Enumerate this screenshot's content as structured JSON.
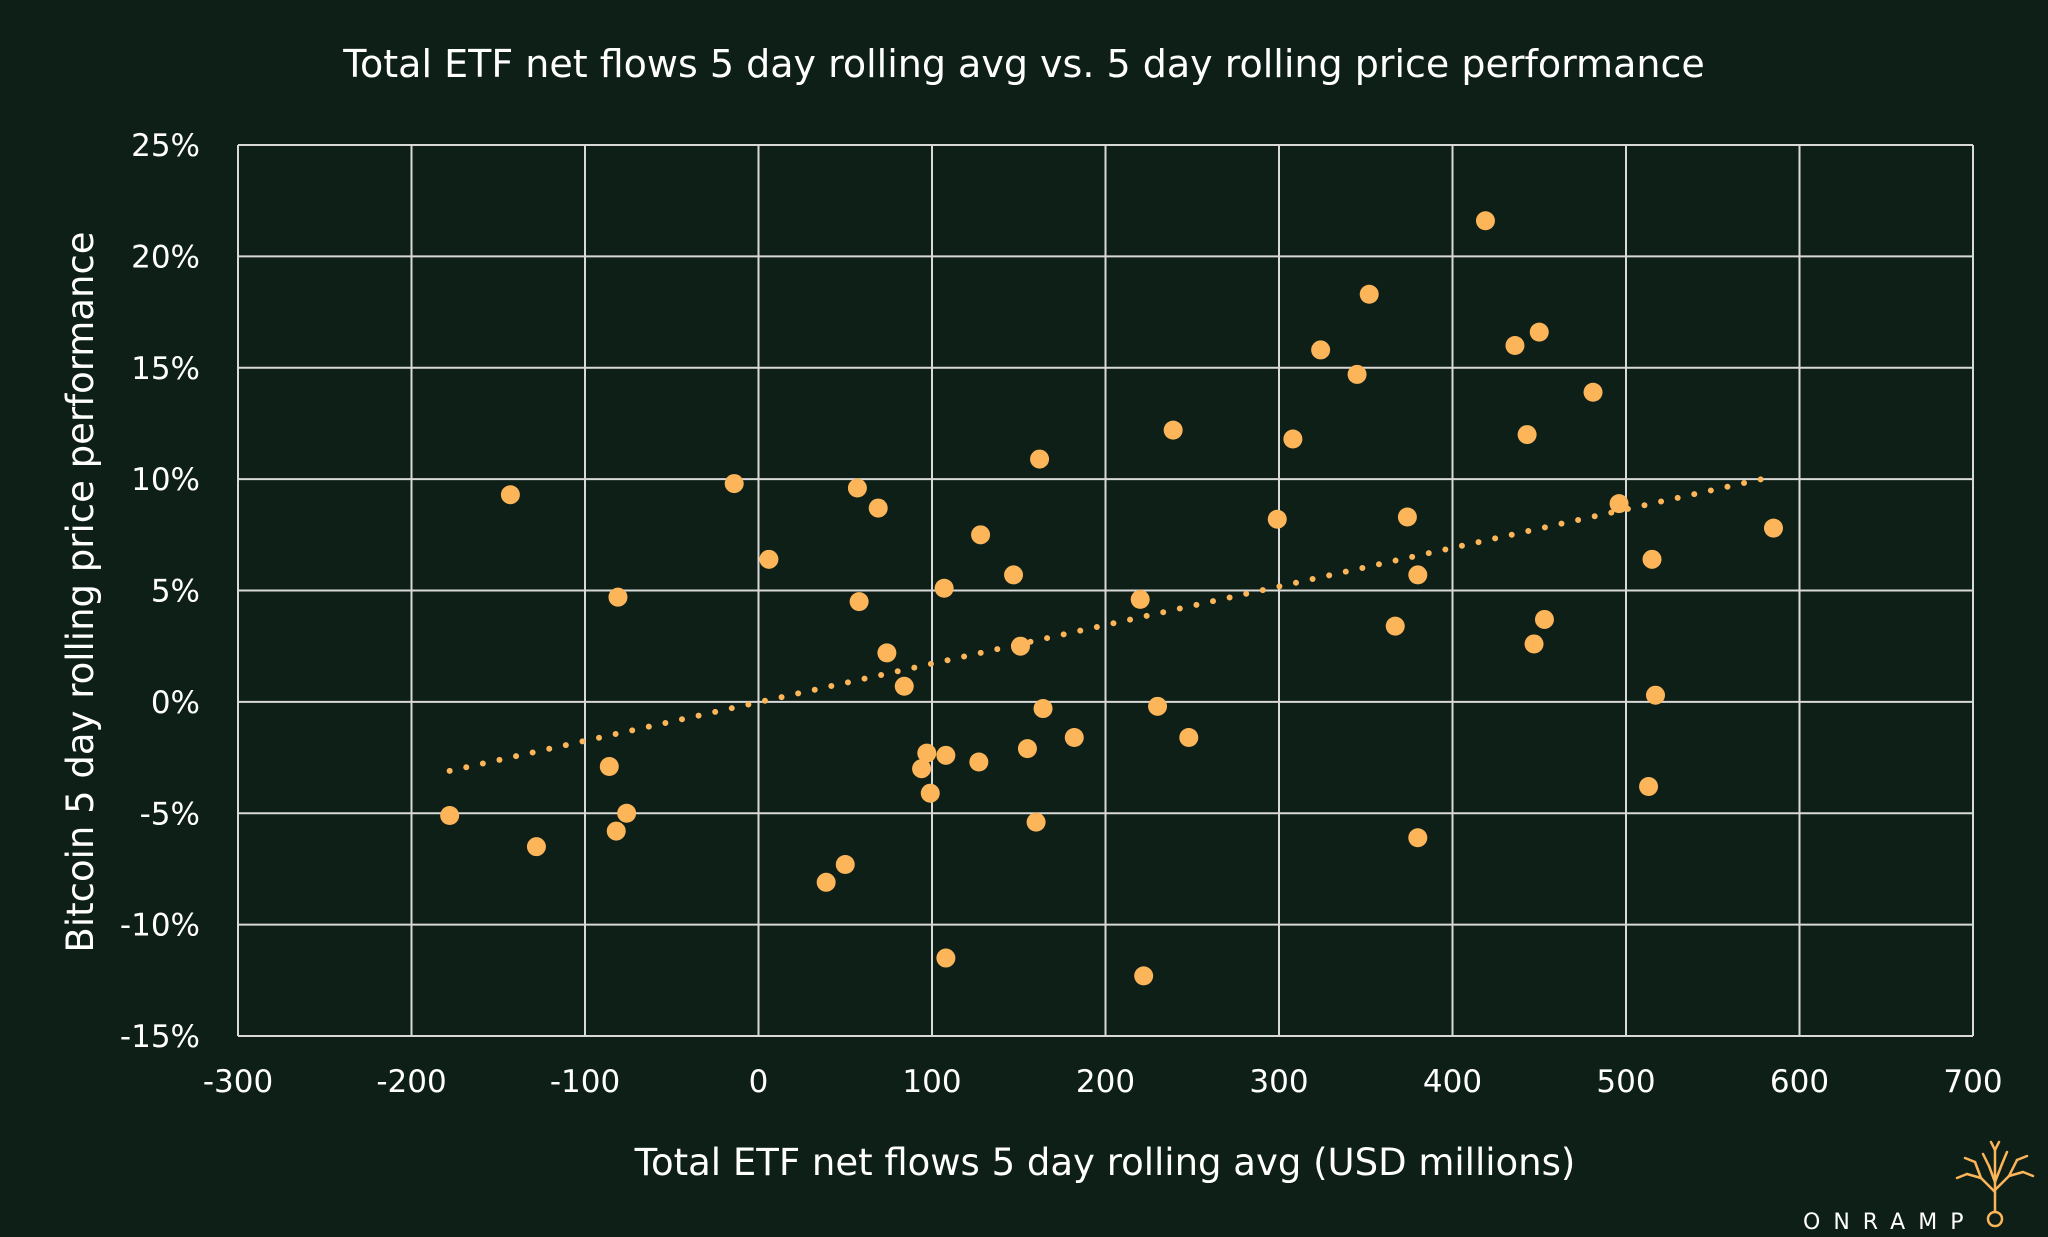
{
  "colors": {
    "background": "#0e1f17",
    "grid": "#d9d9d9",
    "point": "#fdb55a",
    "trendline": "#fdb55a",
    "text": "#ffffff"
  },
  "brand": {
    "logo_text": "ONRAMP",
    "logo_icon": "tree-icon"
  },
  "chart_data": {
    "type": "scatter",
    "title": "Total ETF net flows 5 day rolling avg vs. 5 day rolling price performance",
    "xlabel": "Total ETF net flows 5 day rolling avg (USD millions)",
    "ylabel": "Bitcoin 5 day rolling price performance",
    "xlim": [
      -300,
      700
    ],
    "ylim": [
      -15,
      25
    ],
    "x_ticks": [
      -300,
      -200,
      -100,
      0,
      100,
      200,
      300,
      400,
      500,
      600,
      700
    ],
    "x_tick_labels": [
      "-300",
      "-200",
      "-100",
      "0",
      "100",
      "200",
      "300",
      "400",
      "500",
      "600",
      "700"
    ],
    "y_ticks": [
      -15,
      -10,
      -5,
      0,
      5,
      10,
      15,
      20,
      25
    ],
    "y_tick_labels": [
      "-15%",
      "-10%",
      "-5%",
      "0%",
      "5%",
      "10%",
      "15%",
      "20%",
      "25%"
    ],
    "grid": true,
    "legend": "none",
    "trendline": {
      "type": "linear",
      "dotted": true,
      "x_range": [
        -178,
        584
      ],
      "y_at_start": -3.1,
      "y_at_end": 10.1
    },
    "points": [
      {
        "x": -178,
        "y": -5.1
      },
      {
        "x": -143,
        "y": 9.3
      },
      {
        "x": -128,
        "y": -6.5
      },
      {
        "x": -86,
        "y": -2.9
      },
      {
        "x": -82,
        "y": -5.8
      },
      {
        "x": -81,
        "y": 4.7
      },
      {
        "x": -76,
        "y": -5.0
      },
      {
        "x": -14,
        "y": 9.8
      },
      {
        "x": 6,
        "y": 6.4
      },
      {
        "x": 39,
        "y": -8.1
      },
      {
        "x": 50,
        "y": -7.3
      },
      {
        "x": 57,
        "y": 9.6
      },
      {
        "x": 58,
        "y": 4.5
      },
      {
        "x": 69,
        "y": 8.7
      },
      {
        "x": 74,
        "y": 2.2
      },
      {
        "x": 84,
        "y": 0.7
      },
      {
        "x": 94,
        "y": -3.0
      },
      {
        "x": 97,
        "y": -2.3
      },
      {
        "x": 99,
        "y": -4.1
      },
      {
        "x": 107,
        "y": 5.1
      },
      {
        "x": 108,
        "y": -2.4
      },
      {
        "x": 108,
        "y": -11.5
      },
      {
        "x": 127,
        "y": -2.7
      },
      {
        "x": 128,
        "y": 7.5
      },
      {
        "x": 147,
        "y": 5.7
      },
      {
        "x": 151,
        "y": 2.5
      },
      {
        "x": 155,
        "y": -2.1
      },
      {
        "x": 160,
        "y": -5.4
      },
      {
        "x": 162,
        "y": 10.9
      },
      {
        "x": 164,
        "y": -0.3
      },
      {
        "x": 182,
        "y": -1.6
      },
      {
        "x": 220,
        "y": 4.6
      },
      {
        "x": 222,
        "y": -12.3
      },
      {
        "x": 230,
        "y": -0.2
      },
      {
        "x": 239,
        "y": 12.2
      },
      {
        "x": 248,
        "y": -1.6
      },
      {
        "x": 299,
        "y": 8.2
      },
      {
        "x": 308,
        "y": 11.8
      },
      {
        "x": 324,
        "y": 15.8
      },
      {
        "x": 345,
        "y": 14.7
      },
      {
        "x": 352,
        "y": 18.3
      },
      {
        "x": 367,
        "y": 3.4
      },
      {
        "x": 374,
        "y": 8.3
      },
      {
        "x": 380,
        "y": 5.7
      },
      {
        "x": 380,
        "y": -6.1
      },
      {
        "x": 419,
        "y": 21.6
      },
      {
        "x": 436,
        "y": 16.0
      },
      {
        "x": 443,
        "y": 12.0
      },
      {
        "x": 447,
        "y": 2.6
      },
      {
        "x": 450,
        "y": 16.6
      },
      {
        "x": 453,
        "y": 3.7
      },
      {
        "x": 481,
        "y": 13.9
      },
      {
        "x": 496,
        "y": 8.9
      },
      {
        "x": 513,
        "y": -3.8
      },
      {
        "x": 515,
        "y": 6.4
      },
      {
        "x": 517,
        "y": 0.3
      },
      {
        "x": 585,
        "y": 7.8
      }
    ]
  }
}
